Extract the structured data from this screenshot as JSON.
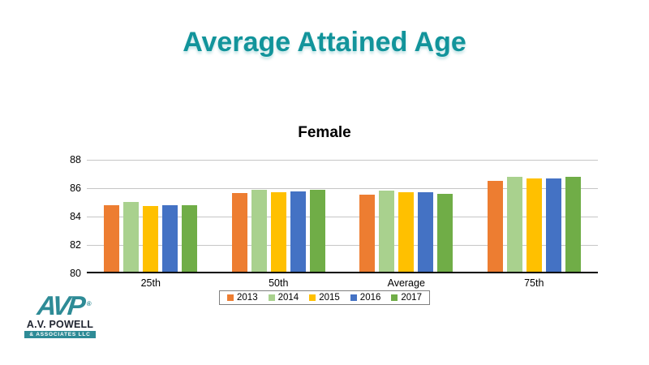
{
  "slide": {
    "title": "Average Attained Age"
  },
  "chart_data": {
    "type": "bar",
    "title": "Female",
    "categories": [
      "25th",
      "50th",
      "Average",
      "75th"
    ],
    "series": [
      {
        "name": "2013",
        "color": "#ED7D31",
        "values": [
          84.7,
          85.55,
          85.45,
          86.4
        ]
      },
      {
        "name": "2014",
        "color": "#A9D18E",
        "values": [
          84.9,
          85.75,
          85.7,
          86.7
        ]
      },
      {
        "name": "2015",
        "color": "#FFC000",
        "values": [
          84.65,
          85.6,
          85.6,
          86.55
        ]
      },
      {
        "name": "2016",
        "color": "#4472C4",
        "values": [
          84.7,
          85.65,
          85.6,
          86.6
        ]
      },
      {
        "name": "2017",
        "color": "#70AD47",
        "values": [
          84.7,
          85.75,
          85.5,
          86.7
        ]
      }
    ],
    "ylim": [
      80,
      88
    ],
    "yticks": [
      80,
      82,
      84,
      86,
      88
    ],
    "grid": true,
    "legend_position": "bottom",
    "xlabel": "",
    "ylabel": ""
  },
  "colors": {
    "title_teal": "#12949B",
    "gridline": "#C6C6C6",
    "axis_line": "#000000",
    "legend_border": "#7F7F7F",
    "logo_teal": "#2E8B96",
    "logo_text_dark": "#1F2430"
  },
  "logo": {
    "mark": "AVP",
    "registered": "®",
    "line1": "A.V. POWELL",
    "line2": "& ASSOCIATES LLC"
  }
}
